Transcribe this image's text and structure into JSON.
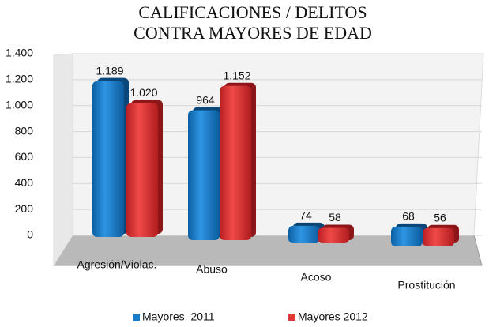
{
  "chart_data": {
    "type": "bar",
    "title": [
      "CALIFICACIONES / DELITOS",
      "CONTRA MAYORES DE EDAD"
    ],
    "categories": [
      "Agresión/Violac.",
      "Abuso",
      "Acoso",
      "Prostitución"
    ],
    "series": [
      {
        "name": "Mayores  2011",
        "color": "#1a7cc9",
        "values": [
          1189,
          964,
          74,
          68
        ],
        "value_labels": [
          "1.189",
          "964",
          "74",
          "68"
        ]
      },
      {
        "name": "Mayores 2012",
        "color": "#e03a3a",
        "values": [
          1020,
          1152,
          58,
          56
        ],
        "value_labels": [
          "1.020",
          "1.152",
          "58",
          "56"
        ]
      }
    ],
    "ylim": [
      0,
      1400
    ],
    "yticks": [
      0,
      200,
      400,
      600,
      800,
      {
        "value": 1000,
        "label": "1.000"
      },
      {
        "value": 1200,
        "label": "1.200"
      },
      {
        "value": 1400,
        "label": "1.400"
      }
    ],
    "grid": true
  }
}
